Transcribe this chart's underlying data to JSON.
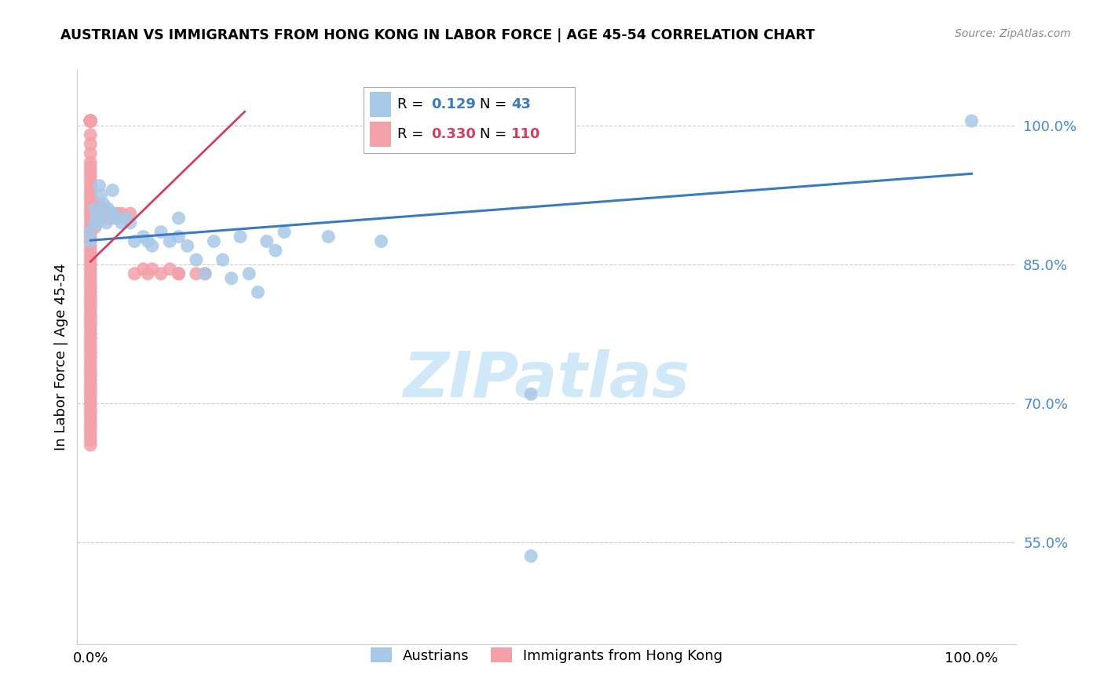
{
  "title": "AUSTRIAN VS IMMIGRANTS FROM HONG KONG IN LABOR FORCE | AGE 45-54 CORRELATION CHART",
  "source": "Source: ZipAtlas.com",
  "ylabel": "In Labor Force | Age 45-54",
  "blue_R": 0.129,
  "blue_N": 43,
  "pink_R": 0.33,
  "pink_N": 110,
  "blue_color": "#a8c8e8",
  "pink_color": "#f4a0a8",
  "blue_line_color": "#3a7abf",
  "pink_line_color": "#d04060",
  "watermark_color": "#d0e8f8",
  "yticks": [
    0.55,
    0.7,
    0.85,
    1.0
  ],
  "ytick_labels": [
    "55.0%",
    "70.0%",
    "85.0%",
    "100.0%"
  ],
  "xlim": [
    -0.015,
    1.05
  ],
  "ylim": [
    0.44,
    1.06
  ],
  "blue_line_x": [
    0.0,
    1.0
  ],
  "blue_line_y": [
    0.876,
    0.948
  ],
  "pink_line_x": [
    0.0,
    0.175
  ],
  "pink_line_y": [
    0.853,
    1.015
  ],
  "blue_x": [
    0.0,
    0.0,
    0.005,
    0.005,
    0.007,
    0.008,
    0.01,
    0.01,
    0.012,
    0.015,
    0.018,
    0.02,
    0.025,
    0.025,
    0.03,
    0.035,
    0.04,
    0.045,
    0.05,
    0.06,
    0.065,
    0.07,
    0.08,
    0.09,
    0.1,
    0.1,
    0.11,
    0.12,
    0.13,
    0.14,
    0.15,
    0.16,
    0.17,
    0.18,
    0.19,
    0.2,
    0.21,
    0.22,
    0.27,
    0.33,
    0.5,
    0.5,
    1.0
  ],
  "blue_y": [
    0.885,
    0.875,
    0.91,
    0.895,
    0.905,
    0.895,
    0.935,
    0.9,
    0.925,
    0.915,
    0.895,
    0.91,
    0.93,
    0.905,
    0.9,
    0.895,
    0.9,
    0.895,
    0.875,
    0.88,
    0.875,
    0.87,
    0.885,
    0.875,
    0.88,
    0.9,
    0.87,
    0.855,
    0.84,
    0.875,
    0.855,
    0.835,
    0.88,
    0.84,
    0.82,
    0.875,
    0.865,
    0.885,
    0.88,
    0.875,
    0.535,
    0.71,
    1.005
  ],
  "pink_x": [
    0.0,
    0.0,
    0.0,
    0.0,
    0.0,
    0.0,
    0.0,
    0.0,
    0.0,
    0.0,
    0.0,
    0.0,
    0.0,
    0.0,
    0.0,
    0.0,
    0.0,
    0.0,
    0.0,
    0.0,
    0.0,
    0.0,
    0.0,
    0.0,
    0.0,
    0.0,
    0.0,
    0.0,
    0.0,
    0.0,
    0.0,
    0.0,
    0.0,
    0.0,
    0.0,
    0.0,
    0.0,
    0.0,
    0.0,
    0.0,
    0.0,
    0.0,
    0.0,
    0.0,
    0.0,
    0.0,
    0.0,
    0.0,
    0.0,
    0.0,
    0.0,
    0.0,
    0.0,
    0.0,
    0.0,
    0.0,
    0.0,
    0.0,
    0.0,
    0.0,
    0.0,
    0.0,
    0.0,
    0.0,
    0.0,
    0.0,
    0.0,
    0.0,
    0.0,
    0.0,
    0.0,
    0.0,
    0.0,
    0.0,
    0.0,
    0.0,
    0.0,
    0.0,
    0.0,
    0.0,
    0.005,
    0.005,
    0.005,
    0.005,
    0.005,
    0.007,
    0.007,
    0.01,
    0.01,
    0.012,
    0.015,
    0.015,
    0.02,
    0.02,
    0.025,
    0.025,
    0.03,
    0.035,
    0.04,
    0.045,
    0.05,
    0.06,
    0.065,
    0.07,
    0.08,
    0.09,
    0.1,
    0.1,
    0.12,
    0.13
  ],
  "pink_y": [
    1.005,
    1.005,
    1.005,
    1.005,
    1.005,
    1.005,
    1.005,
    1.005,
    1.005,
    1.005,
    1.005,
    1.005,
    1.005,
    1.005,
    1.005,
    0.99,
    0.98,
    0.97,
    0.96,
    0.955,
    0.95,
    0.945,
    0.94,
    0.935,
    0.93,
    0.925,
    0.92,
    0.915,
    0.91,
    0.905,
    0.9,
    0.895,
    0.89,
    0.885,
    0.88,
    0.875,
    0.87,
    0.865,
    0.86,
    0.855,
    0.85,
    0.845,
    0.84,
    0.835,
    0.83,
    0.825,
    0.82,
    0.815,
    0.81,
    0.805,
    0.8,
    0.795,
    0.79,
    0.785,
    0.78,
    0.775,
    0.77,
    0.765,
    0.76,
    0.755,
    0.75,
    0.745,
    0.74,
    0.735,
    0.73,
    0.725,
    0.72,
    0.715,
    0.71,
    0.705,
    0.7,
    0.695,
    0.69,
    0.685,
    0.68,
    0.675,
    0.67,
    0.665,
    0.66,
    0.655,
    0.91,
    0.905,
    0.9,
    0.895,
    0.89,
    0.905,
    0.9,
    0.915,
    0.91,
    0.91,
    0.91,
    0.905,
    0.905,
    0.9,
    0.905,
    0.9,
    0.905,
    0.905,
    0.9,
    0.905,
    0.84,
    0.845,
    0.84,
    0.845,
    0.84,
    0.845,
    0.84,
    0.84,
    0.84,
    0.84
  ]
}
